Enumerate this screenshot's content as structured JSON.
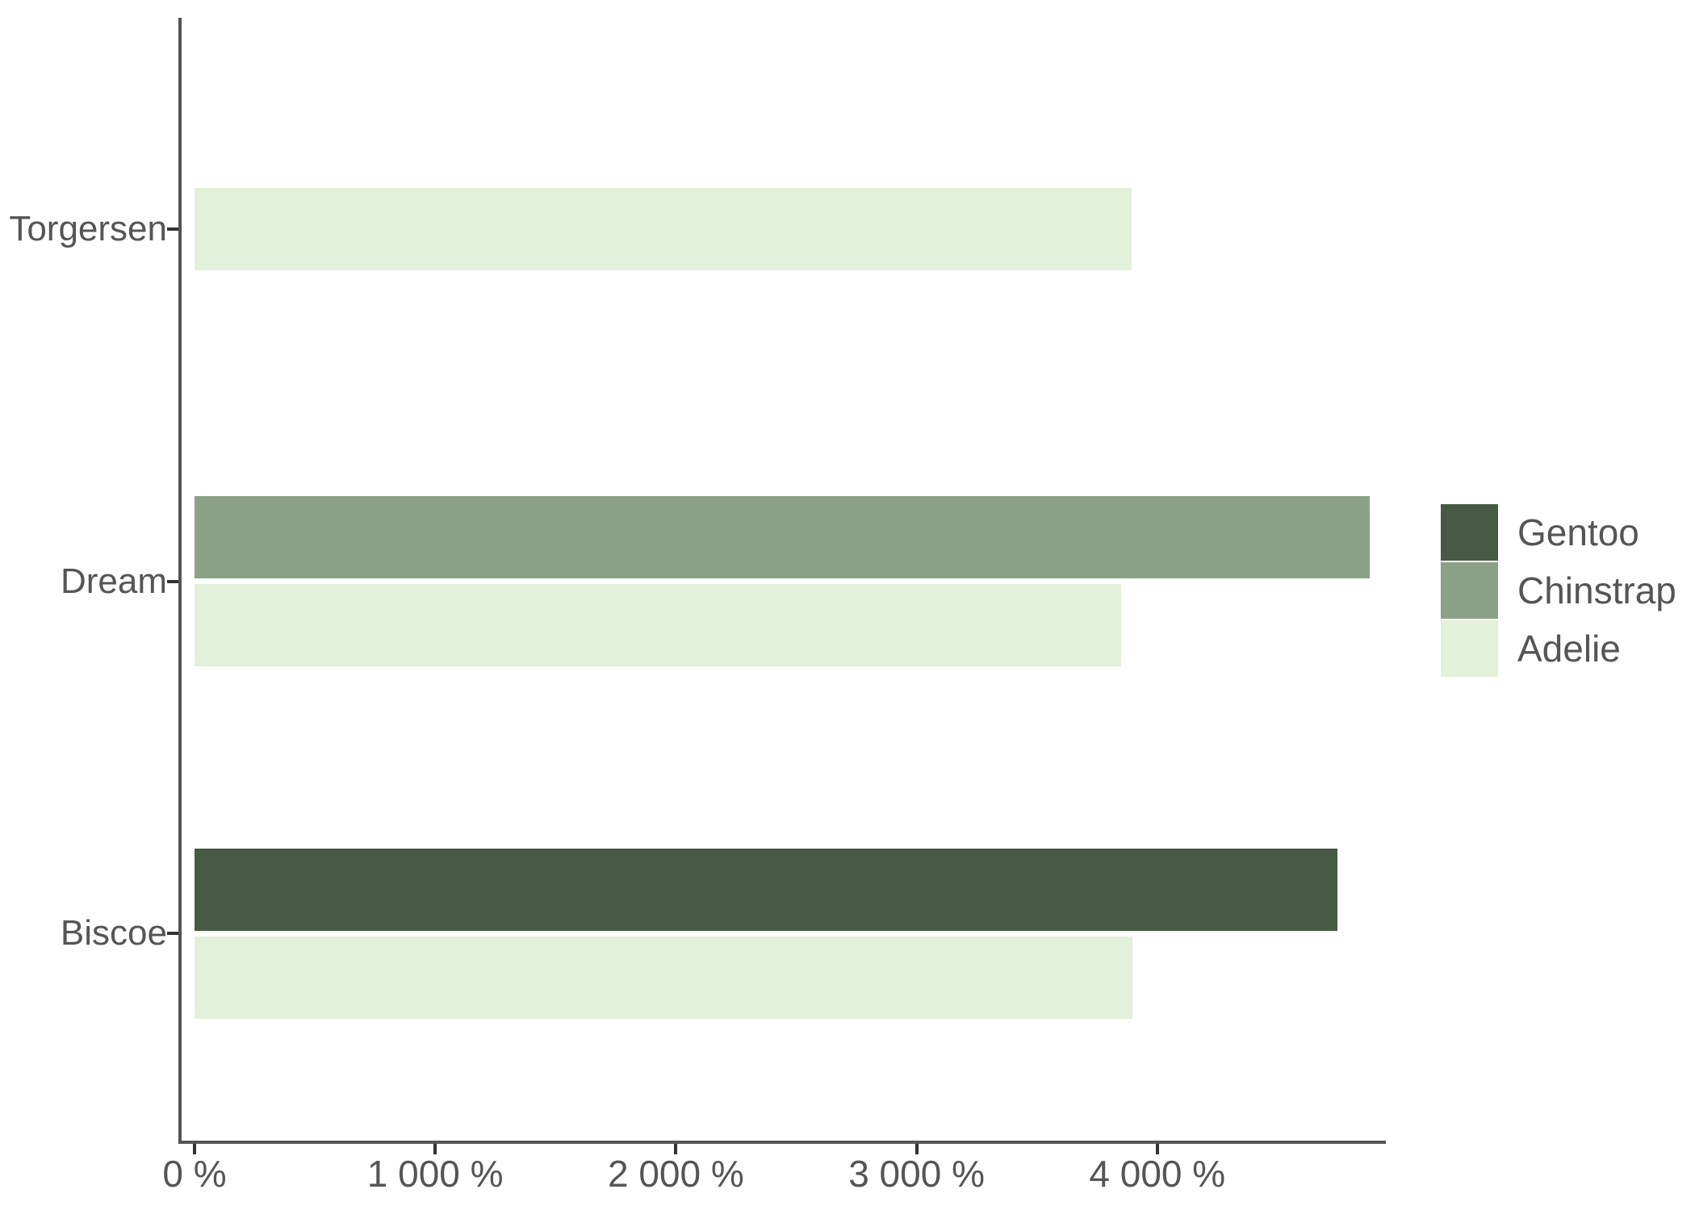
{
  "figure": {
    "background": "#ffffff",
    "text_color": "#555555",
    "axis_line_color": "#545454",
    "tick_color": "#333333"
  },
  "chart_data": {
    "type": "bar",
    "orientation": "horizontal",
    "title": "",
    "subtitle": "",
    "xlabel": "",
    "ylabel": "",
    "grid": false,
    "categories": [
      "Torgersen",
      "Dream",
      "Biscoe"
    ],
    "series": [
      {
        "name": "Gentoo",
        "color": "#465a43",
        "values": [
          null,
          null,
          4750
        ]
      },
      {
        "name": "Chinstrap",
        "color": "#8aa186",
        "values": [
          null,
          4883,
          null
        ]
      },
      {
        "name": "Adelie",
        "color": "#e3f0da",
        "values": [
          3895,
          3850,
          3898
        ]
      }
    ],
    "x_axis": {
      "unit": "%",
      "range": [
        0,
        4950
      ],
      "ticks": [
        {
          "value": 0,
          "label": "0 %"
        },
        {
          "value": 1000,
          "label": "1 000 %"
        },
        {
          "value": 2000,
          "label": "2 000 %"
        },
        {
          "value": 3000,
          "label": "3 000 %"
        },
        {
          "value": 4000,
          "label": "4 000 %"
        }
      ]
    },
    "legend": {
      "position": "right",
      "entries": [
        "Gentoo",
        "Chinstrap",
        "Adelie"
      ]
    }
  }
}
